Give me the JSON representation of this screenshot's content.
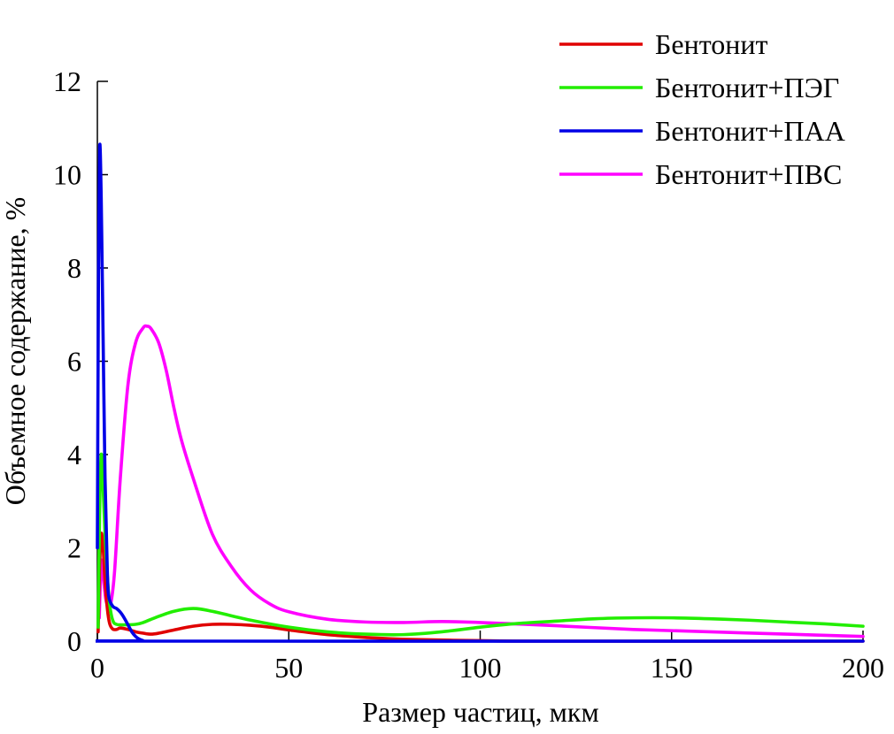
{
  "chart_data": {
    "type": "line",
    "title": "",
    "xlabel": "Размер частиц, мкм",
    "ylabel": "Объемное содержание, %",
    "xlim": [
      0,
      200
    ],
    "ylim": [
      0,
      12
    ],
    "xticks": [
      0,
      50,
      100,
      150,
      200
    ],
    "yticks": [
      0,
      2,
      4,
      6,
      8,
      10,
      12
    ],
    "xtick_labels": [
      "0",
      "50",
      "100",
      "150",
      "200"
    ],
    "ytick_labels": [
      "0",
      "2",
      "4",
      "6",
      "8",
      "10",
      "12"
    ],
    "grid": false,
    "legend_position": "top-right",
    "series": [
      {
        "name": "Бентонит",
        "color": "#e00000",
        "points": [
          [
            0.2,
            0.2
          ],
          [
            0.6,
            1.6
          ],
          [
            1.0,
            2.3
          ],
          [
            1.5,
            2.0
          ],
          [
            2.0,
            1.3
          ],
          [
            2.6,
            0.7
          ],
          [
            3.2,
            0.38
          ],
          [
            4.0,
            0.26
          ],
          [
            5.0,
            0.25
          ],
          [
            6.0,
            0.28
          ],
          [
            8.0,
            0.25
          ],
          [
            10.0,
            0.2
          ],
          [
            12.0,
            0.17
          ],
          [
            14.0,
            0.15
          ],
          [
            16.0,
            0.17
          ],
          [
            20.0,
            0.24
          ],
          [
            25.0,
            0.32
          ],
          [
            30.0,
            0.36
          ],
          [
            35.0,
            0.36
          ],
          [
            40.0,
            0.34
          ],
          [
            45.0,
            0.3
          ],
          [
            50.0,
            0.24
          ],
          [
            60.0,
            0.14
          ],
          [
            70.0,
            0.08
          ],
          [
            80.0,
            0.04
          ],
          [
            100.0,
            0.01
          ],
          [
            120.0,
            0.0
          ],
          [
            200.0,
            0.0
          ]
        ]
      },
      {
        "name": "Бентонит+ПЭГ",
        "color": "#22ee00",
        "points": [
          [
            0.2,
            0.3
          ],
          [
            0.6,
            2.8
          ],
          [
            1.0,
            4.0
          ],
          [
            1.5,
            3.3
          ],
          [
            2.0,
            2.3
          ],
          [
            2.6,
            1.4
          ],
          [
            3.2,
            0.8
          ],
          [
            4.0,
            0.45
          ],
          [
            5.0,
            0.36
          ],
          [
            7.0,
            0.35
          ],
          [
            10.0,
            0.36
          ],
          [
            12.0,
            0.4
          ],
          [
            15.0,
            0.5
          ],
          [
            20.0,
            0.64
          ],
          [
            25.0,
            0.7
          ],
          [
            30.0,
            0.64
          ],
          [
            40.0,
            0.45
          ],
          [
            50.0,
            0.3
          ],
          [
            60.0,
            0.2
          ],
          [
            70.0,
            0.15
          ],
          [
            80.0,
            0.14
          ],
          [
            90.0,
            0.2
          ],
          [
            100.0,
            0.3
          ],
          [
            110.0,
            0.38
          ],
          [
            120.0,
            0.43
          ],
          [
            130.0,
            0.48
          ],
          [
            140.0,
            0.5
          ],
          [
            150.0,
            0.5
          ],
          [
            160.0,
            0.48
          ],
          [
            170.0,
            0.45
          ],
          [
            180.0,
            0.41
          ],
          [
            190.0,
            0.37
          ],
          [
            200.0,
            0.32
          ]
        ]
      },
      {
        "name": "Бентонит+ПАА",
        "color": "#0000e6",
        "points": [
          [
            0.0,
            2.0
          ],
          [
            0.3,
            8.0
          ],
          [
            0.6,
            10.6
          ],
          [
            1.0,
            9.5
          ],
          [
            1.5,
            6.5
          ],
          [
            2.0,
            3.5
          ],
          [
            2.6,
            1.5
          ],
          [
            3.0,
            0.95
          ],
          [
            4.0,
            0.75
          ],
          [
            5.0,
            0.7
          ],
          [
            6.0,
            0.62
          ],
          [
            7.0,
            0.5
          ],
          [
            8.0,
            0.35
          ],
          [
            9.0,
            0.2
          ],
          [
            10.0,
            0.1
          ],
          [
            11.0,
            0.04
          ],
          [
            12.0,
            0.01
          ],
          [
            13.0,
            0.0
          ],
          [
            200.0,
            0.0
          ]
        ]
      },
      {
        "name": "Бентонит+ПВС",
        "color": "#ff00ff",
        "points": [
          [
            0.5,
            0.5
          ],
          [
            1.0,
            1.7
          ],
          [
            1.5,
            1.4
          ],
          [
            2.2,
            0.9
          ],
          [
            2.8,
            0.75
          ],
          [
            3.5,
            0.8
          ],
          [
            4.5,
            1.5
          ],
          [
            6.0,
            3.5
          ],
          [
            8.0,
            5.5
          ],
          [
            10.0,
            6.4
          ],
          [
            12.0,
            6.72
          ],
          [
            13.0,
            6.75
          ],
          [
            14.0,
            6.7
          ],
          [
            16.0,
            6.4
          ],
          [
            18.0,
            5.8
          ],
          [
            20.0,
            5.0
          ],
          [
            22.0,
            4.3
          ],
          [
            25.0,
            3.5
          ],
          [
            30.0,
            2.3
          ],
          [
            35.0,
            1.6
          ],
          [
            40.0,
            1.1
          ],
          [
            45.0,
            0.8
          ],
          [
            50.0,
            0.63
          ],
          [
            60.0,
            0.47
          ],
          [
            70.0,
            0.41
          ],
          [
            80.0,
            0.4
          ],
          [
            90.0,
            0.42
          ],
          [
            100.0,
            0.4
          ],
          [
            120.0,
            0.33
          ],
          [
            140.0,
            0.25
          ],
          [
            160.0,
            0.2
          ],
          [
            180.0,
            0.15
          ],
          [
            200.0,
            0.1
          ]
        ]
      }
    ]
  }
}
